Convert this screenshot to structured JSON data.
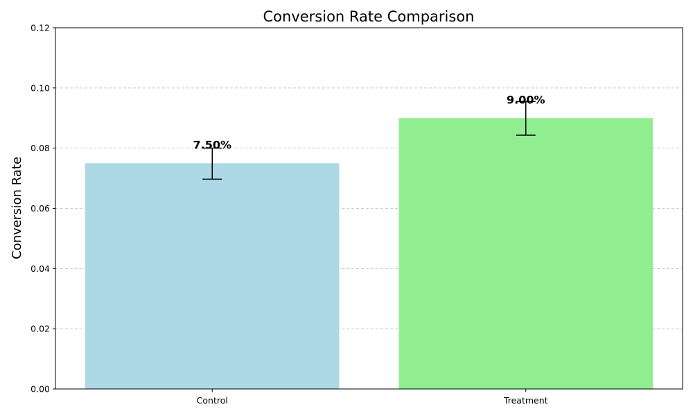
{
  "chart_data": {
    "type": "bar",
    "title": "Conversion Rate Comparison",
    "xlabel": "",
    "ylabel": "Conversion Rate",
    "categories": [
      "Control",
      "Treatment"
    ],
    "values": [
      0.075,
      0.09
    ],
    "value_labels": [
      "7.50%",
      "9.00%"
    ],
    "error_bars": [
      {
        "low": 0.0697,
        "high": 0.08
      },
      {
        "low": 0.0843,
        "high": 0.0955
      }
    ],
    "bar_colors": [
      "#add8e6",
      "#90ee90"
    ],
    "ylim": [
      0,
      0.12
    ],
    "yticks": [
      "0.00",
      "0.02",
      "0.04",
      "0.06",
      "0.08",
      "0.10",
      "0.12"
    ],
    "grid": "y-dashed",
    "legend": "none"
  }
}
